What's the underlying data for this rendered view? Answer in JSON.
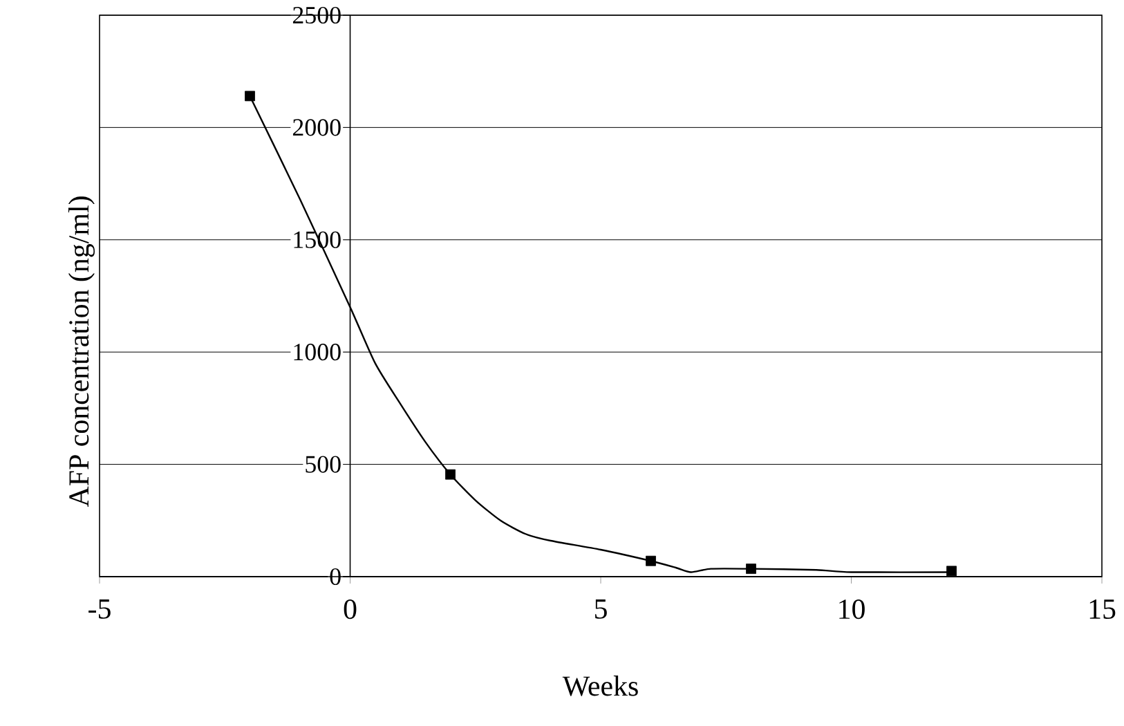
{
  "chart_data": {
    "type": "scatter",
    "xlabel": "Weeks",
    "ylabel": "AFP concentration (ng/ml)",
    "xlim": [
      -5,
      15
    ],
    "ylim": [
      0,
      2500
    ],
    "xticks": [
      -5,
      0,
      5,
      10,
      15
    ],
    "yticks": [
      0,
      500,
      1000,
      1500,
      2000,
      2500
    ],
    "grid": "y",
    "series": [
      {
        "type": "line",
        "color": "#000000",
        "marker": "none",
        "line_style": "solid",
        "x": [
          -2,
          -1,
          0,
          0.5,
          1,
          1.5,
          2,
          2.5,
          3,
          3.5,
          4,
          5,
          6,
          6.5,
          6.8,
          7.2,
          8,
          9.3,
          10,
          12
        ],
        "values": [
          2140,
          1680,
          1200,
          950,
          770,
          600,
          455,
          340,
          250,
          190,
          160,
          120,
          70,
          40,
          20,
          35,
          35,
          30,
          20,
          20
        ]
      },
      {
        "color": "#000000",
        "marker": "square",
        "x": [
          -2,
          2,
          6,
          8,
          12
        ],
        "values": [
          2140,
          455,
          70,
          35,
          25
        ]
      }
    ]
  }
}
